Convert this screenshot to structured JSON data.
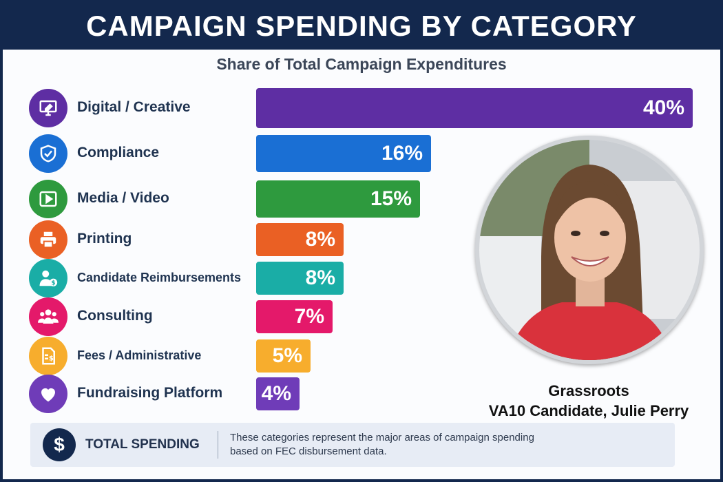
{
  "header": {
    "title": "CAMPAIGN SPENDING BY CATEGORY"
  },
  "chart_data": {
    "type": "bar",
    "orientation": "horizontal",
    "title": "CAMPAIGN SPENDING BY CATEGORY",
    "subtitle": "Share of Total Campaign Expenditures",
    "unit": "%",
    "xlim": [
      0,
      40
    ],
    "grid": false,
    "categories": [
      "Digital / Creative",
      "Compliance",
      "Media / Video",
      "Printing",
      "Candidate Reimbursements",
      "Consulting",
      "Fees / Administrative",
      "Fundraising Platform"
    ],
    "values": [
      40,
      16,
      15,
      8,
      8,
      7,
      5,
      4
    ],
    "labels": [
      "40%",
      "16%",
      "15%",
      "8%",
      "8%",
      "7%",
      "5%",
      "4%"
    ],
    "colors": [
      "#5e2ea3",
      "#1a6fd4",
      "#2e9a3e",
      "#ea6024",
      "#1aada6",
      "#e4196a",
      "#f7ad2d",
      "#6f3cb8"
    ],
    "icons": [
      "monitor-pen-icon",
      "shield-check-icon",
      "play-video-icon",
      "printer-icon",
      "person-dollar-icon",
      "people-group-icon",
      "dollar-document-icon",
      "heart-icon"
    ]
  },
  "candidate": {
    "line1": "Grassroots",
    "line2": "VA10 Candidate, Julie Perry"
  },
  "footer": {
    "icon": "$",
    "label": "TOTAL SPENDING",
    "note_line1": "These categories represent the major areas of campaign spending",
    "note_line2": "based on FEC disbursement data."
  }
}
